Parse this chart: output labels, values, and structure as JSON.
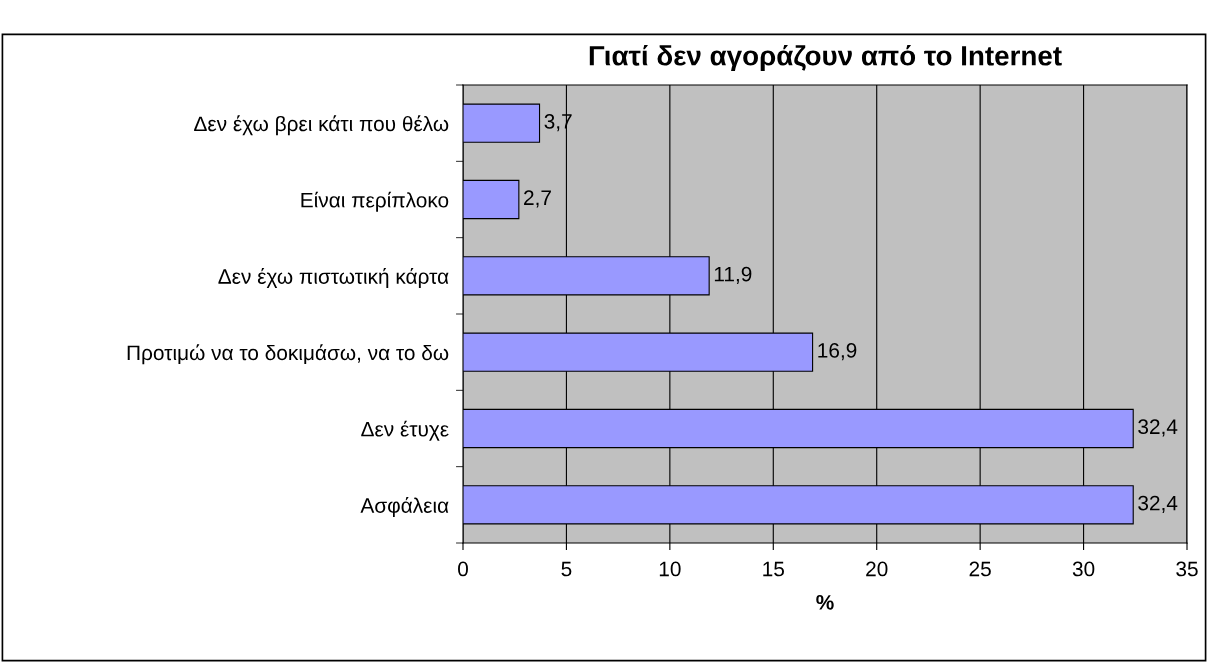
{
  "chart_data": {
    "type": "bar",
    "orientation": "horizontal",
    "title": "Γιατί δεν αγοράζουν από το Internet",
    "xlabel": "%",
    "categories": [
      "Δεν έχω βρει κάτι που θέλω",
      "Είναι περίπλοκο",
      "Δεν έχω πιστωτική κάρτα",
      "Προτιμώ να το δοκιμάσω, να το δω",
      "Δεν έτυχε",
      "Ασφάλεια"
    ],
    "values": [
      3.7,
      2.7,
      11.9,
      16.9,
      32.4,
      32.4
    ],
    "value_labels": [
      "3,7",
      "2,7",
      "11,9",
      "16,9",
      "32,4",
      "32,4"
    ],
    "color": "#9999ff",
    "xlim": [
      0,
      35
    ],
    "xticks": [
      0,
      5,
      10,
      15,
      20,
      25,
      30,
      35
    ],
    "grid": "x",
    "legend": false
  }
}
